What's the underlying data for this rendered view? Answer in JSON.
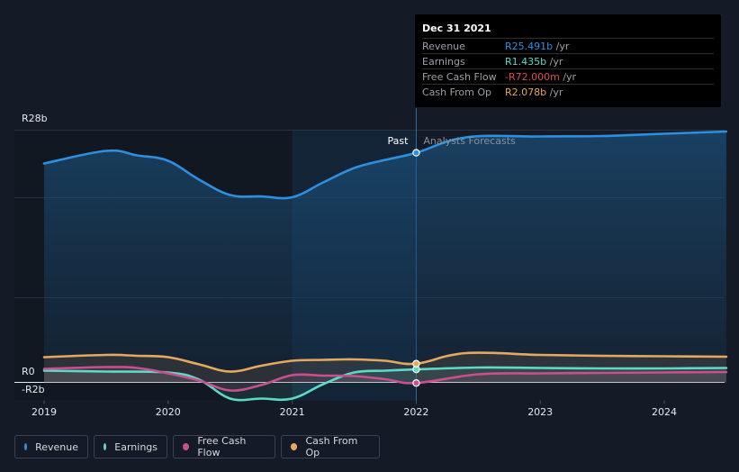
{
  "chart_data": {
    "type": "line",
    "y_axis": {
      "top_label": "R28b",
      "zero_label": "R0",
      "bottom_label": "-R2b",
      "ylim": [
        -2,
        28
      ]
    },
    "x_ticks": [
      "2019",
      "2020",
      "2021",
      "2022",
      "2023",
      "2024"
    ],
    "region_labels": {
      "past": "Past",
      "forecast": "Analysts Forecasts"
    },
    "series": [
      {
        "name": "Revenue",
        "color": "#2d8fe0",
        "unit": "b",
        "points": [
          [
            2019.0,
            24.3
          ],
          [
            2019.5,
            25.7
          ],
          [
            2019.75,
            25.2
          ],
          [
            2020.0,
            24.6
          ],
          [
            2020.25,
            22.5
          ],
          [
            2020.5,
            20.8
          ],
          [
            2020.75,
            20.65
          ],
          [
            2021.0,
            20.55
          ],
          [
            2021.25,
            22.2
          ],
          [
            2021.5,
            23.8
          ],
          [
            2021.75,
            24.7
          ],
          [
            2022.0,
            25.491
          ],
          [
            2022.4,
            27.2
          ],
          [
            2023.0,
            27.3
          ],
          [
            2023.5,
            27.35
          ],
          [
            2024.0,
            27.6
          ],
          [
            2024.5,
            27.85
          ]
        ]
      },
      {
        "name": "Earnings",
        "color": "#5ed9c8",
        "unit": "b",
        "points": [
          [
            2019.0,
            1.3
          ],
          [
            2019.5,
            1.2
          ],
          [
            2020.0,
            1.1
          ],
          [
            2020.25,
            0.3
          ],
          [
            2020.5,
            -1.8
          ],
          [
            2020.75,
            -1.8
          ],
          [
            2021.0,
            -1.8
          ],
          [
            2021.25,
            -0.2
          ],
          [
            2021.5,
            1.1
          ],
          [
            2021.75,
            1.3
          ],
          [
            2022.0,
            1.435
          ],
          [
            2022.5,
            1.65
          ],
          [
            2023.0,
            1.6
          ],
          [
            2023.5,
            1.55
          ],
          [
            2024.0,
            1.55
          ],
          [
            2024.5,
            1.6
          ]
        ]
      },
      {
        "name": "Free Cash Flow",
        "color": "#c8508e",
        "unit": "b",
        "points": [
          [
            2019.0,
            1.5
          ],
          [
            2019.5,
            1.7
          ],
          [
            2019.75,
            1.6
          ],
          [
            2020.0,
            1.0
          ],
          [
            2020.25,
            0.2
          ],
          [
            2020.5,
            -0.9
          ],
          [
            2020.75,
            -0.3
          ],
          [
            2021.0,
            0.8
          ],
          [
            2021.25,
            0.75
          ],
          [
            2021.5,
            0.7
          ],
          [
            2021.75,
            0.35
          ],
          [
            2022.0,
            -0.072
          ],
          [
            2022.5,
            0.9
          ],
          [
            2023.0,
            1.0
          ],
          [
            2023.5,
            1.05
          ],
          [
            2024.0,
            1.1
          ],
          [
            2024.5,
            1.15
          ]
        ]
      },
      {
        "name": "Cash From Op",
        "color": "#e4a85f",
        "unit": "b",
        "points": [
          [
            2019.0,
            2.8
          ],
          [
            2019.5,
            3.05
          ],
          [
            2019.75,
            2.95
          ],
          [
            2020.0,
            2.8
          ],
          [
            2020.25,
            2.0
          ],
          [
            2020.5,
            1.2
          ],
          [
            2020.75,
            1.85
          ],
          [
            2021.0,
            2.4
          ],
          [
            2021.25,
            2.5
          ],
          [
            2021.5,
            2.55
          ],
          [
            2021.75,
            2.4
          ],
          [
            2022.0,
            2.078
          ],
          [
            2022.4,
            3.25
          ],
          [
            2023.0,
            3.05
          ],
          [
            2023.5,
            2.95
          ],
          [
            2024.0,
            2.9
          ],
          [
            2024.5,
            2.85
          ]
        ]
      }
    ]
  },
  "tooltip": {
    "date": "Dec 31 2021",
    "unit_suffix": "/yr",
    "rows": [
      {
        "name": "Revenue",
        "value": "R25.491b",
        "color": "#2d8fe0"
      },
      {
        "name": "Earnings",
        "value": "R1.435b",
        "color": "#5ed9c8"
      },
      {
        "name": "Free Cash Flow",
        "value": "-R72.000m",
        "color": "#e5484d"
      },
      {
        "name": "Cash From Op",
        "value": "R2.078b",
        "color": "#e4a85f"
      }
    ]
  },
  "legend": [
    {
      "label": "Revenue",
      "color": "#2d8fe0"
    },
    {
      "label": "Earnings",
      "color": "#5ed9c8"
    },
    {
      "label": "Free Cash Flow",
      "color": "#c8508e"
    },
    {
      "label": "Cash From Op",
      "color": "#e4a85f"
    }
  ]
}
